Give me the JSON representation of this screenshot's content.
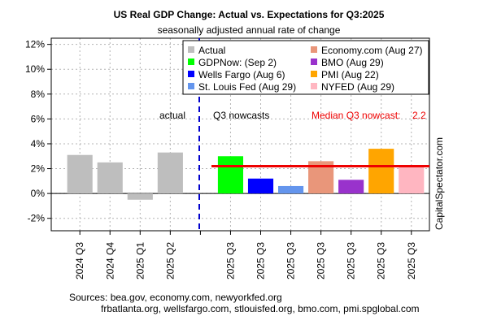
{
  "chart_data": {
    "type": "bar",
    "title": "US Real GDP Change: Actual vs. Expectations for Q3:2025",
    "subtitle": "seasonally adjusted annual rate of change",
    "ylim": [
      -3,
      12.5
    ],
    "yticks": [
      -2,
      0,
      2,
      4,
      6,
      8,
      10,
      12
    ],
    "ytick_labels": [
      "-2%",
      "0%",
      "2%",
      "4%",
      "6%",
      "8%",
      "10%",
      "12%"
    ],
    "grid": true,
    "legend_position": "top-right",
    "section_labels": {
      "actual": "actual",
      "nowcast": "Q3 nowcasts"
    },
    "median_label": "Median Q3 nowcast:",
    "median_value": 2.2,
    "median_value_label": "2.2",
    "categories": [
      "2024 Q3",
      "2024 Q4",
      "2025 Q1",
      "2025 Q2",
      "",
      "2025 Q3",
      "2025 Q3",
      "2025 Q3",
      "2025 Q3",
      "2025 Q3",
      "2025 Q3",
      "2025 Q3"
    ],
    "bars": [
      {
        "category": "2024 Q3",
        "value": 3.1,
        "color": "#bebebe"
      },
      {
        "category": "2024 Q4",
        "value": 2.5,
        "color": "#bebebe"
      },
      {
        "category": "2025 Q1",
        "value": -0.5,
        "color": "#bebebe"
      },
      {
        "category": "2025 Q2",
        "value": 3.3,
        "color": "#bebebe"
      },
      null,
      {
        "category": "2025 Q3",
        "value": 3.0,
        "color": "#00ff00"
      },
      {
        "category": "2025 Q3",
        "value": 1.2,
        "color": "#0000ff"
      },
      {
        "category": "2025 Q3",
        "value": 0.6,
        "color": "#6495ed"
      },
      {
        "category": "2025 Q3",
        "value": 2.6,
        "color": "#e9967a"
      },
      {
        "category": "2025 Q3",
        "value": 1.1,
        "color": "#9932cc"
      },
      {
        "category": "2025 Q3",
        "value": 3.6,
        "color": "#ffa500"
      },
      {
        "category": "2025 Q3",
        "value": 2.1,
        "color": "#ffb6c1"
      }
    ],
    "legend": [
      {
        "label": "Actual",
        "color": "#bebebe"
      },
      {
        "label": "Economy.com (Aug 27)",
        "color": "#e9967a"
      },
      {
        "label": "GDPNow: (Sep 2)",
        "color": "#00ff00"
      },
      {
        "label": "BMO (Aug 29)",
        "color": "#9932cc"
      },
      {
        "label": "Wells Fargo (Aug 6)",
        "color": "#0000ff"
      },
      {
        "label": "PMI (Aug 22)",
        "color": "#ffa500"
      },
      {
        "label": "St. Louis Fed (Aug 29)",
        "color": "#6495ed"
      },
      {
        "label": "NYFED (Aug 29)",
        "color": "#ffb6c1"
      }
    ],
    "divider_color": "#0000cd",
    "median_color": "#ee0000",
    "side_label": "CapitalSpectator.com",
    "sources": [
      "Sources: bea.gov, economy.com, newyorkfed.org",
      "frbatlanta.org, wellsfargo.com, stlouisfed.org, bmo.com, pmi.spglobal.com"
    ]
  }
}
